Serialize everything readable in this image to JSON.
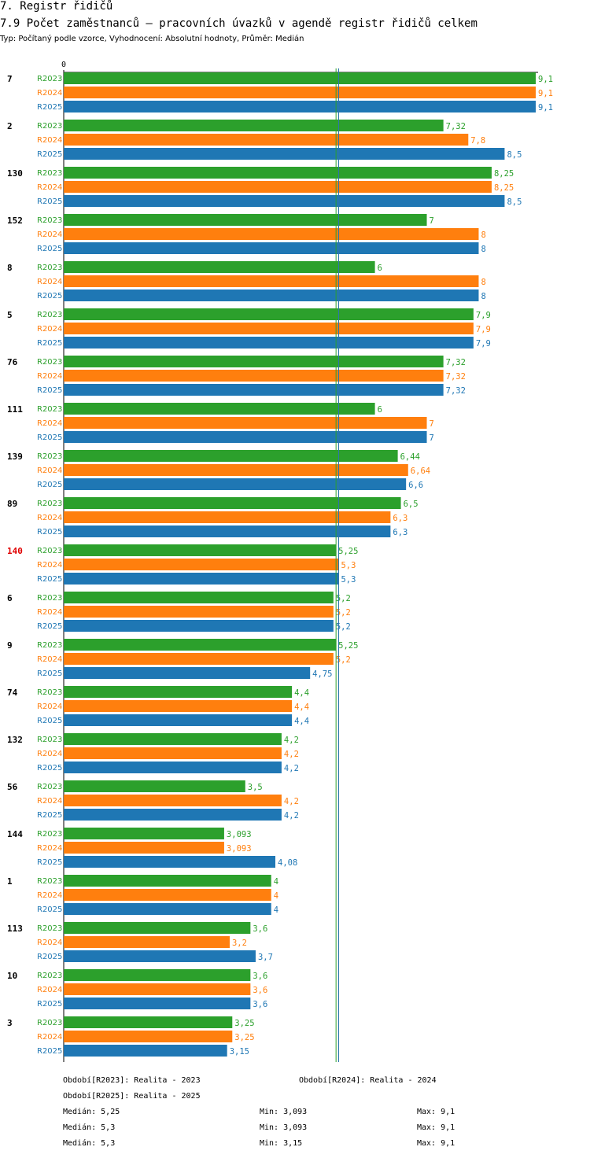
{
  "header": {
    "title": "7. Registr řidičů",
    "subtitle": "7.9 Počet zaměstnanců – pracovních úvazků v agendě registr řidičů celkem",
    "type_line": "Typ: Počítaný podle vzorce, Vyhodnocení: Absolutní hodnoty, Průměr: Medián"
  },
  "chart_data": {
    "type": "bar",
    "orientation": "horizontal",
    "x_axis_zero_label": "0",
    "xlim": [
      0,
      9.1
    ],
    "highlight_category": "140",
    "highlight_color": "#e00000",
    "categories": [
      "7",
      "2",
      "130",
      "152",
      "8",
      "5",
      "76",
      "111",
      "139",
      "89",
      "140",
      "6",
      "9",
      "74",
      "132",
      "56",
      "144",
      "1",
      "113",
      "10",
      "3"
    ],
    "series": [
      {
        "name": "R2023",
        "color": "#2ca02c",
        "values": [
          9.1,
          7.32,
          8.25,
          7,
          6,
          7.9,
          7.32,
          6,
          6.44,
          6.5,
          5.25,
          5.2,
          5.25,
          4.4,
          4.2,
          3.5,
          3.093,
          4,
          3.6,
          3.6,
          3.25
        ],
        "labels": [
          "9,1",
          "7,32",
          "8,25",
          "7",
          "6",
          "7,9",
          "7,32",
          "6",
          "6,44",
          "6,5",
          "5,25",
          "5,2",
          "5,25",
          "4,4",
          "4,2",
          "3,5",
          "3,093",
          "4",
          "3,6",
          "3,6",
          "3,25"
        ]
      },
      {
        "name": "R2024",
        "color": "#ff7f0e",
        "values": [
          9.1,
          7.8,
          8.25,
          8,
          8,
          7.9,
          7.32,
          7,
          6.64,
          6.3,
          5.3,
          5.2,
          5.2,
          4.4,
          4.2,
          4.2,
          3.093,
          4,
          3.2,
          3.6,
          3.25
        ],
        "labels": [
          "9,1",
          "7,8",
          "8,25",
          "8",
          "8",
          "7,9",
          "7,32",
          "7",
          "6,64",
          "6,3",
          "5,3",
          "5,2",
          "5,2",
          "4,4",
          "4,2",
          "4,2",
          "3,093",
          "4",
          "3,2",
          "3,6",
          "3,25"
        ]
      },
      {
        "name": "R2025",
        "color": "#1f77b4",
        "values": [
          9.1,
          8.5,
          8.5,
          8,
          8,
          7.9,
          7.32,
          7,
          6.6,
          6.3,
          5.3,
          5.2,
          4.75,
          4.4,
          4.2,
          4.2,
          4.08,
          4,
          3.7,
          3.6,
          3.15
        ],
        "labels": [
          "9,1",
          "8,5",
          "8,5",
          "8",
          "8",
          "7,9",
          "7,32",
          "7",
          "6,6",
          "6,3",
          "5,3",
          "5,2",
          "4,75",
          "4,4",
          "4,2",
          "4,2",
          "4,08",
          "4",
          "3,7",
          "3,6",
          "3,15"
        ]
      }
    ],
    "median_lines": [
      5.25,
      5.3,
      5.3
    ]
  },
  "legend": {
    "periods": [
      {
        "text": "Období[R2023]: Realita - 2023",
        "color": "#2ca02c"
      },
      {
        "text": "Období[R2024]: Realita - 2024",
        "color": "#ff7f0e"
      },
      {
        "text": "Období[R2025]: Realita - 2025",
        "color": "#1f77b4"
      }
    ],
    "stats": [
      {
        "median": "Medián: 5,25",
        "min": "Min: 3,093",
        "max": "Max: 9,1",
        "color": "#2ca02c"
      },
      {
        "median": "Medián: 5,3",
        "min": "Min: 3,093",
        "max": "Max: 9,1",
        "color": "#ff7f0e"
      },
      {
        "median": "Medián: 5,3",
        "min": "Min: 3,15",
        "max": "Max: 9,1",
        "color": "#1f77b4"
      }
    ]
  }
}
